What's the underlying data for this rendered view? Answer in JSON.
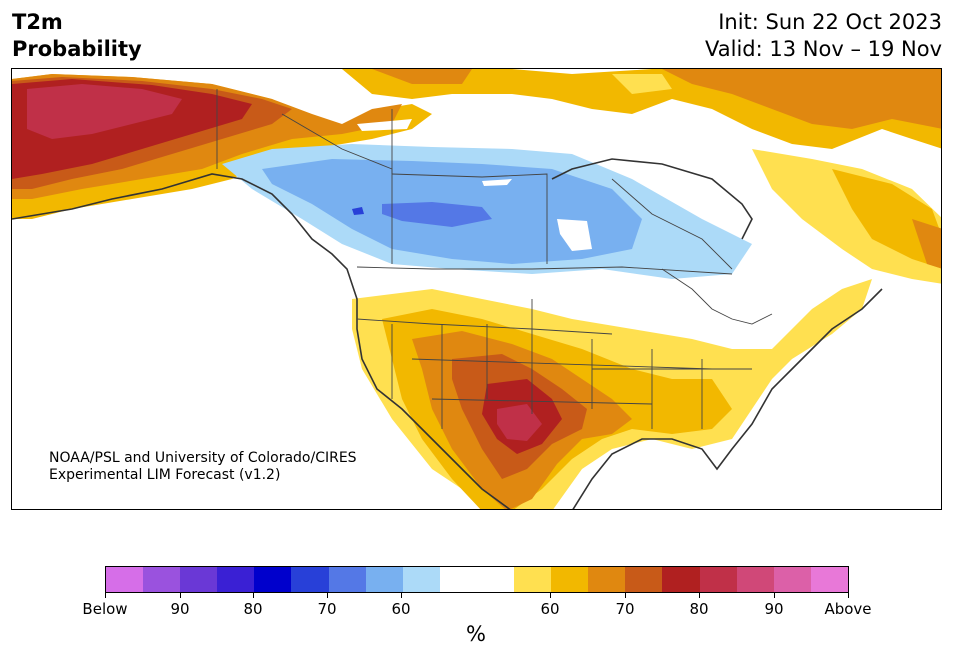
{
  "header": {
    "title_line1": "T2m",
    "title_line2": "Probability",
    "init": "Init: Sun 22 Oct 2023",
    "valid": "Valid: 13 Nov – 19 Nov"
  },
  "credit": {
    "line1": "NOAA/PSL and University of Colorado/CIRES",
    "line2": "Experimental LIM Forecast (v1.2)"
  },
  "colorbar": {
    "colors": [
      "#d66ee8",
      "#9a52de",
      "#6a38d6",
      "#3a20d4",
      "#0000cc",
      "#2840d8",
      "#5478e6",
      "#78b0f0",
      "#acdaf8",
      "#ffffff",
      "#ffffff",
      "#ffe050",
      "#f2b800",
      "#e08810",
      "#c85a18",
      "#b02020",
      "#c03048",
      "#d04878",
      "#dc60a8",
      "#e878d8"
    ],
    "tick_labels": [
      "Below",
      "90",
      "80",
      "70",
      "60",
      "60",
      "70",
      "80",
      "90",
      "Above"
    ],
    "unit": "%"
  }
}
